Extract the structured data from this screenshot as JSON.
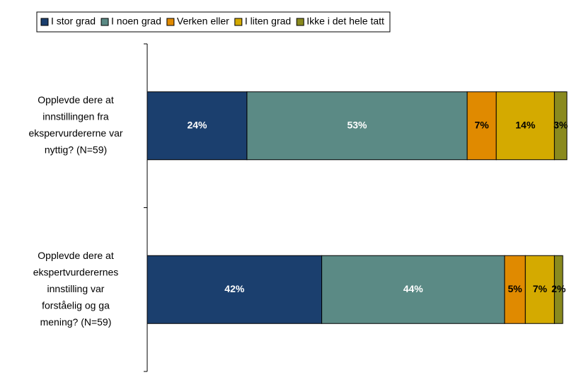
{
  "chart_data": {
    "type": "stacked-bar-horizontal",
    "categories": [
      [
        "Opplevde dere at",
        "innstillingen fra",
        "ekspervurdererne var",
        "nyttig? (N=59)"
      ],
      [
        "Opplevde dere at",
        "ekspertvurderernes",
        "innstilling var",
        "forståelig og ga",
        "mening? (N=59)"
      ]
    ],
    "series": [
      {
        "name": "I stor grad",
        "color": "#1b3f6e",
        "label_color": "#ffffff",
        "values": [
          24,
          42
        ],
        "value_labels": [
          "24%",
          "42%"
        ]
      },
      {
        "name": "I noen grad",
        "color": "#5b8a85",
        "label_color": "#ffffff",
        "values": [
          53,
          44
        ],
        "value_labels": [
          "53%",
          "44%"
        ]
      },
      {
        "name": "Verken eller",
        "color": "#e08a00",
        "label_color": "#000000",
        "values": [
          7,
          5
        ],
        "value_labels": [
          "7%",
          "5%"
        ]
      },
      {
        "name": "I liten grad",
        "color": "#d4aa00",
        "label_color": "#000000",
        "values": [
          14,
          7
        ],
        "value_labels": [
          "14%",
          "7%"
        ]
      },
      {
        "name": "Ikke i det hele tatt",
        "color": "#8a8a1e",
        "label_color": "#000000",
        "values": [
          3,
          2
        ],
        "value_labels": [
          "3%",
          "2%"
        ]
      }
    ],
    "legend": "top"
  }
}
